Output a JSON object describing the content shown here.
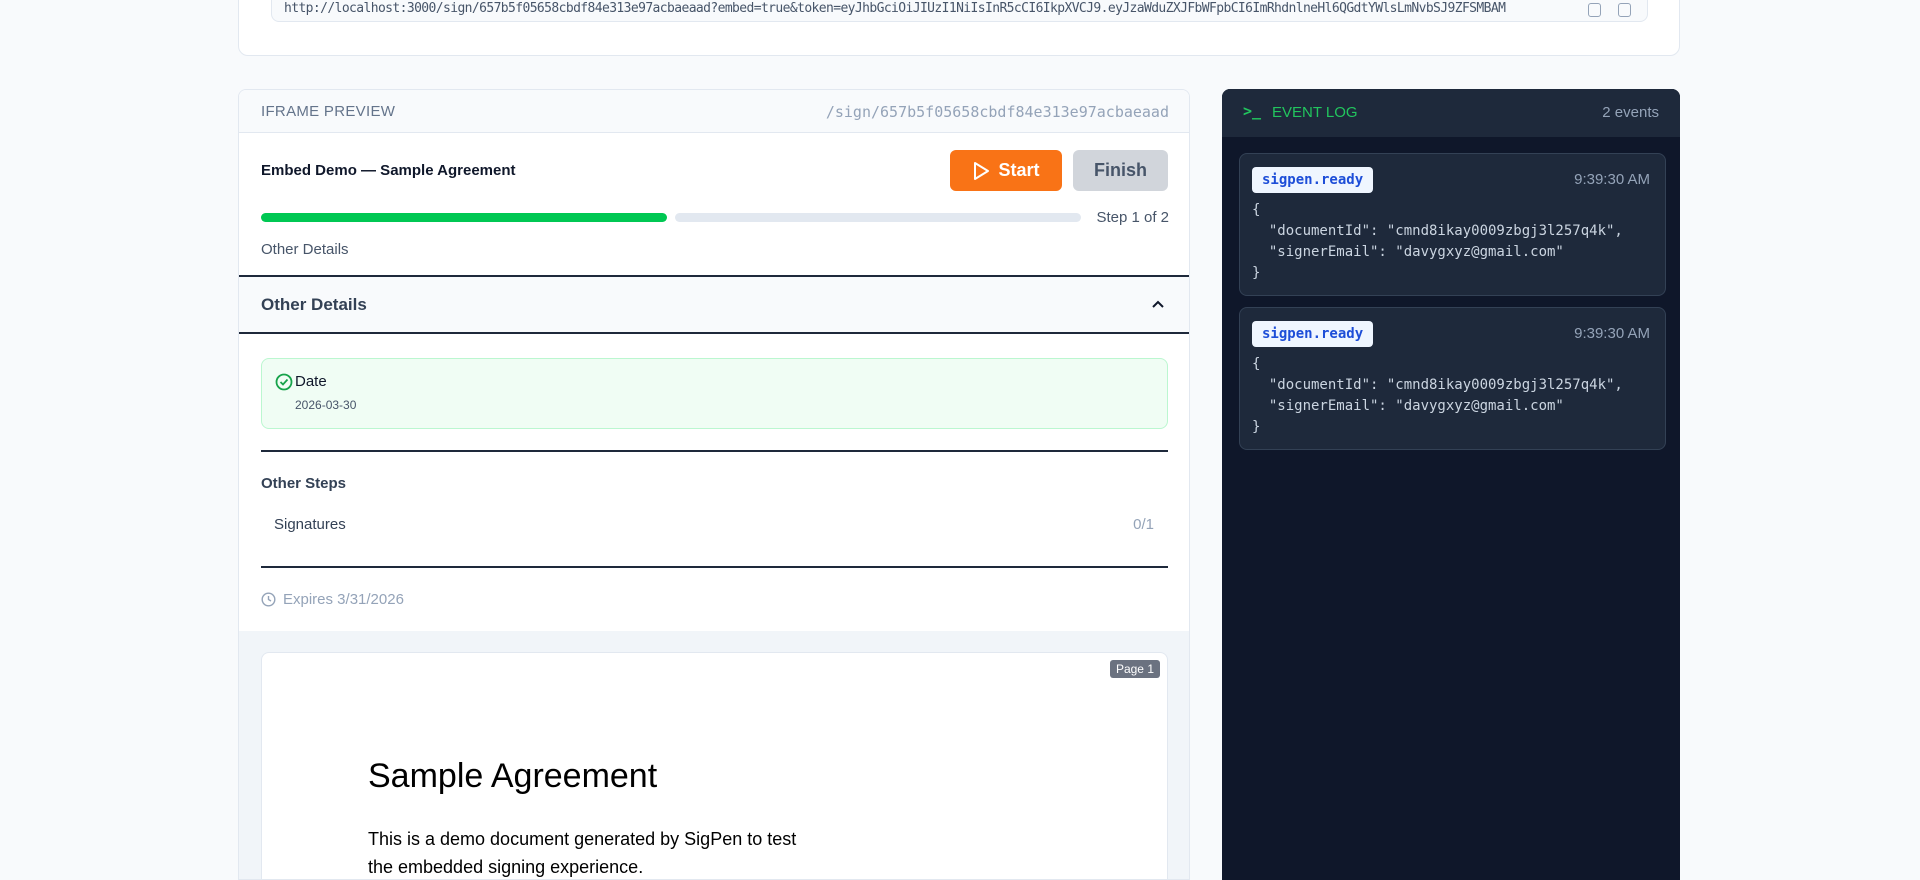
{
  "top": {
    "url": "http://localhost:3000/sign/657b5f05658cbdf84e313e97acbaeaad?embed=true&token=eyJhbGciOiJIUzI1NiIsInR5cCI6IkpXVCJ9.eyJzaWduZXJFbWFpbCI6ImRhdnlneHl6QGdtYWlsLmNvbSJ9ZFSMBAM"
  },
  "iframe": {
    "header_label": "IFRAME PREVIEW",
    "path": "/sign/657b5f05658cbdf84e313e97acbaeaad",
    "doc_title": "Embed Demo — Sample Agreement",
    "start_label": "Start",
    "finish_label": "Finish",
    "progress_fraction": 0.5,
    "step_text": "Step 1 of 2",
    "current_step": "Other Details",
    "section_title": "Other Details",
    "field": {
      "label": "Date",
      "value": "2026-03-30"
    },
    "other_steps_title": "Other Steps",
    "other_steps": [
      {
        "label": "Signatures",
        "count": "0/1"
      }
    ],
    "expires": "Expires 3/31/2026",
    "page_badge": "Page 1",
    "doc_heading": "Sample Agreement",
    "doc_para_1": "This is a demo document generated by SigPen to test",
    "doc_para_2": "the embedded signing experience."
  },
  "log": {
    "title": "EVENT LOG",
    "count": "2 events",
    "events": [
      {
        "name": "sigpen.ready",
        "time": "9:39:30 AM",
        "payload": "{\n  \"documentId\": \"cmnd8ikay0009zbgj3l257q4k\",\n  \"signerEmail\": \"davygxyz@gmail.com\"\n}"
      },
      {
        "name": "sigpen.ready",
        "time": "9:39:30 AM",
        "payload": "{\n  \"documentId\": \"cmnd8ikay0009zbgj3l257q4k\",\n  \"signerEmail\": \"davygxyz@gmail.com\"\n}"
      }
    ]
  },
  "colors": {
    "accent": "#f97316",
    "success": "#00c853",
    "log_green": "#22c55e"
  }
}
